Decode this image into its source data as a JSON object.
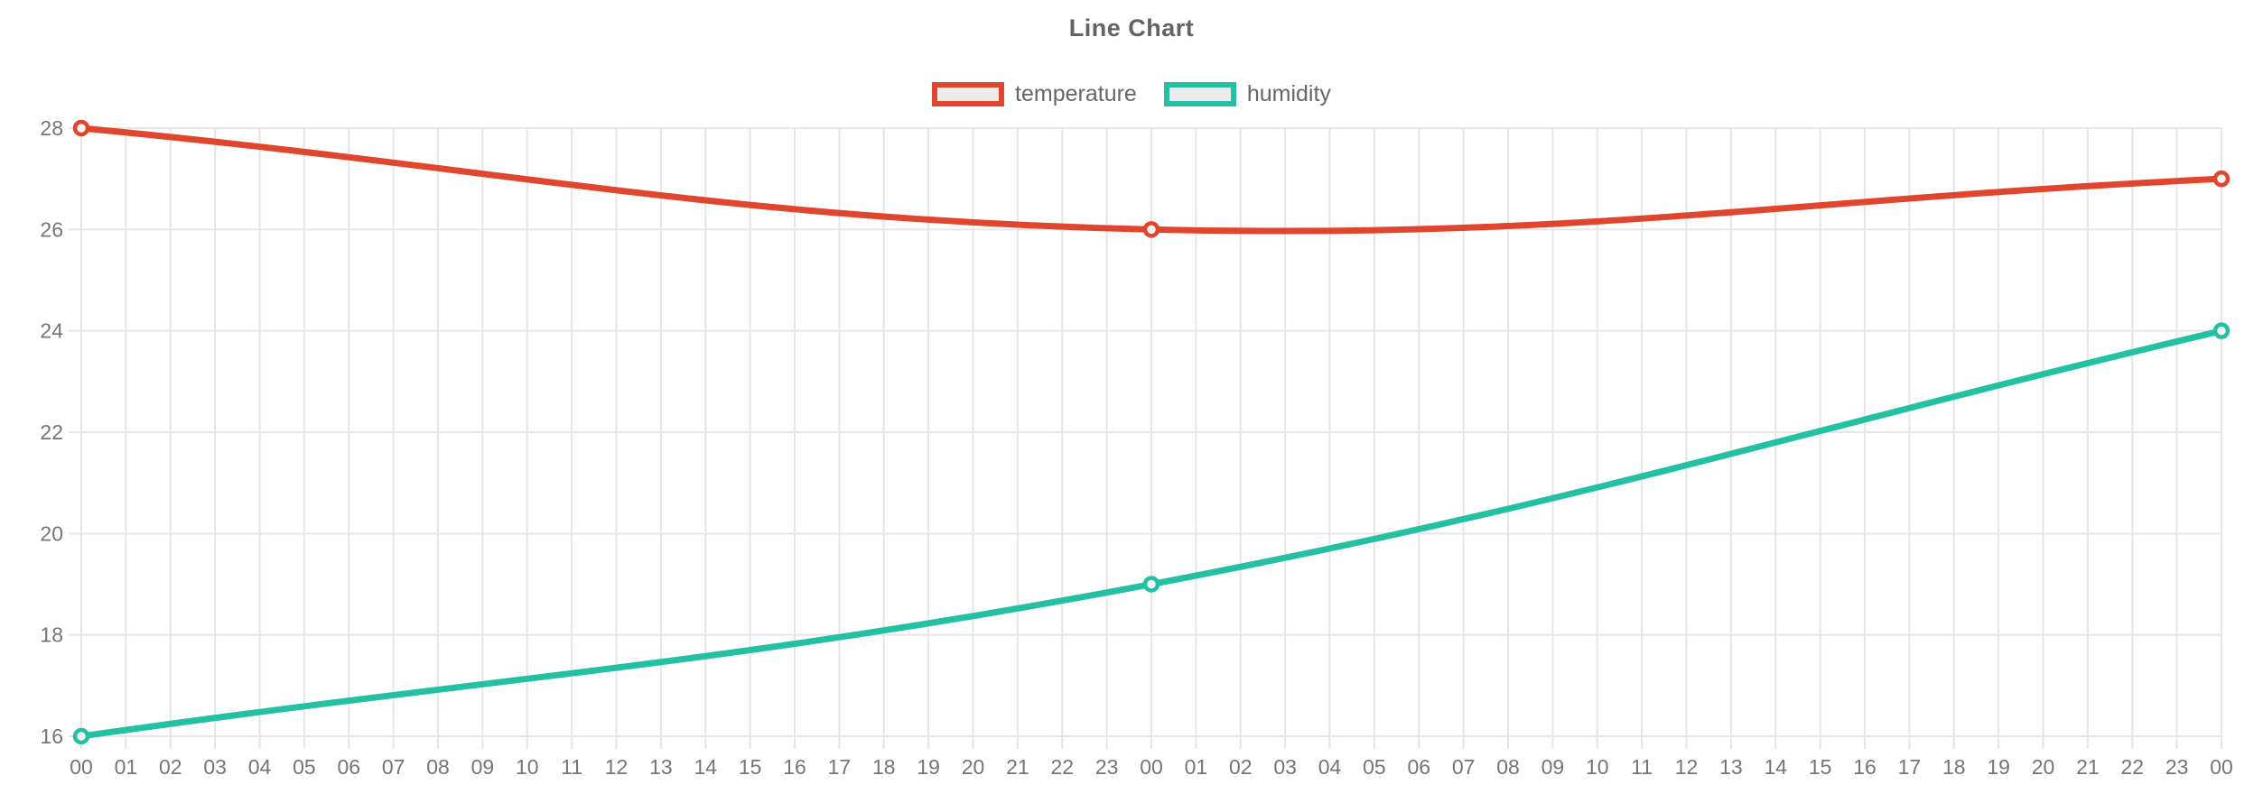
{
  "title": "Line Chart",
  "chart_data": {
    "type": "line",
    "title": "Line Chart",
    "xlabel": "",
    "ylabel": "",
    "ylim": [
      16,
      28
    ],
    "yticks": [
      16,
      18,
      20,
      22,
      24,
      26,
      28
    ],
    "grid": true,
    "legend_position": "top",
    "line_tension": 0.4,
    "categories": [
      "00",
      "01",
      "02",
      "03",
      "04",
      "05",
      "06",
      "07",
      "08",
      "09",
      "10",
      "11",
      "12",
      "13",
      "14",
      "15",
      "16",
      "17",
      "18",
      "19",
      "20",
      "21",
      "22",
      "23",
      "00",
      "01",
      "02",
      "03",
      "04",
      "05",
      "06",
      "07",
      "08",
      "09",
      "10",
      "11",
      "12",
      "13",
      "14",
      "15",
      "16",
      "17",
      "18",
      "19",
      "20",
      "21",
      "22",
      "23",
      "00"
    ],
    "series": [
      {
        "name": "temperature",
        "color": "#e0462d",
        "points": [
          {
            "index": 0,
            "label": "00",
            "value": 28
          },
          {
            "index": 24,
            "label": "00",
            "value": 26
          },
          {
            "index": 48,
            "label": "00",
            "value": 27
          }
        ]
      },
      {
        "name": "humidity",
        "color": "#24c0a4",
        "points": [
          {
            "index": 0,
            "label": "00",
            "value": 16
          },
          {
            "index": 24,
            "label": "00",
            "value": 19
          },
          {
            "index": 48,
            "label": "00",
            "value": 24
          }
        ]
      }
    ],
    "colors": {
      "background": "#ffffff",
      "grid": "#e6e6e6",
      "tick_text": "#757575",
      "title_text": "#636363",
      "legend_text": "#666666",
      "legend_box_fill": "#ececec",
      "marker_fill": "#f4f4f4"
    }
  }
}
